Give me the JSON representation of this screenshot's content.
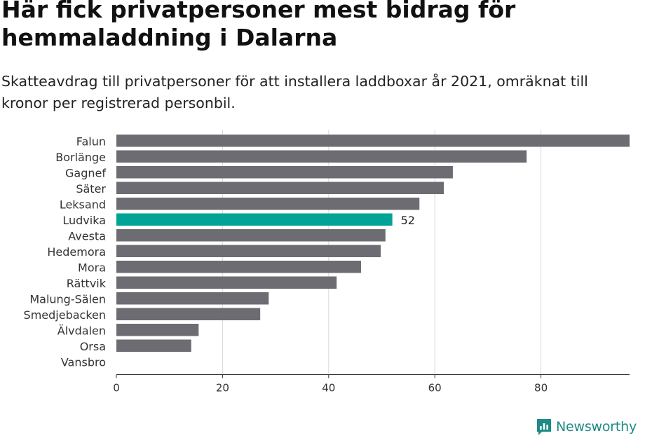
{
  "header": {
    "title": "Här fick privatpersoner mest bidrag för hemmaladdning i Dalarna",
    "subtitle": "Skatteavdrag till privatpersoner för att installera laddboxar år 2021, omräknat till kronor per registrerad personbil."
  },
  "colors": {
    "bar_default": "#6d6c72",
    "bar_highlight": "#00a396",
    "grid": "#d9d9d9",
    "axis": "#333333",
    "brand": "#1d8a86"
  },
  "chart_data": {
    "type": "bar",
    "orientation": "horizontal",
    "categories": [
      "Falun",
      "Borlänge",
      "Gagnef",
      "Säter",
      "Leksand",
      "Ludvika",
      "Avesta",
      "Hedemora",
      "Mora",
      "Rättvik",
      "Malung-Sälen",
      "Smedjebacken",
      "Älvdalen",
      "Orsa",
      "Vansbro"
    ],
    "values": [
      96.7,
      77.3,
      63.4,
      61.7,
      57.1,
      52,
      50.7,
      49.8,
      46.1,
      41.5,
      28.7,
      27.1,
      15.5,
      14.1,
      0
    ],
    "highlight": "Ludvika",
    "highlight_label": "52",
    "xlim": [
      0,
      96.7
    ],
    "xticks": [
      0,
      20,
      40,
      60,
      80
    ],
    "grid": true,
    "xlabel": "",
    "ylabel": ""
  },
  "branding": {
    "logo_text": "Newsworthy"
  }
}
